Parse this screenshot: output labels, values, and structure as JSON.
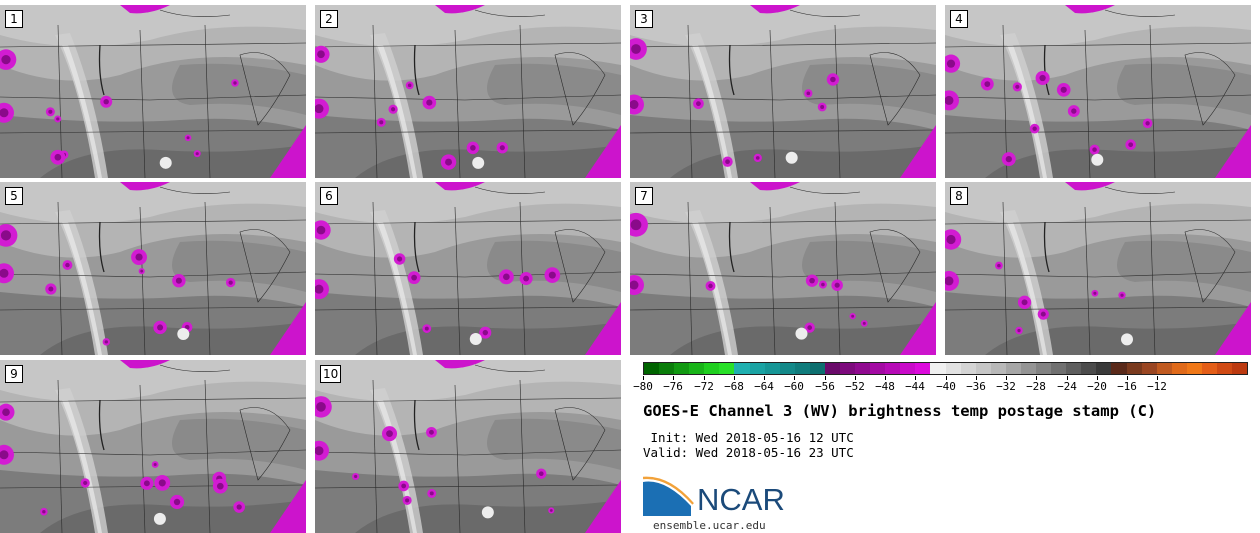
{
  "panels": [
    {
      "label": "1"
    },
    {
      "label": "2"
    },
    {
      "label": "3"
    },
    {
      "label": "4"
    },
    {
      "label": "5"
    },
    {
      "label": "6"
    },
    {
      "label": "7"
    },
    {
      "label": "8"
    },
    {
      "label": "9"
    },
    {
      "label": "10"
    }
  ],
  "colorbar": {
    "colors": [
      "#006400",
      "#0a7d0a",
      "#119911",
      "#18b418",
      "#1fcf1f",
      "#28e028",
      "#1fb0b0",
      "#1aa3a3",
      "#169696",
      "#138989",
      "#107c7c",
      "#0d6f6f",
      "#6a0a6a",
      "#7d0a7d",
      "#900a90",
      "#a30aa3",
      "#b60ab6",
      "#c90ac9",
      "#dc0adc",
      "#f0f0f0",
      "#e2e2e2",
      "#d4d4d4",
      "#c6c6c6",
      "#b8b8b8",
      "#a6a6a6",
      "#949494",
      "#828282",
      "#707070",
      "#5e5e5e",
      "#4c4c4c",
      "#3a3a3a",
      "#5a2a1a",
      "#7a3a1e",
      "#9a4622",
      "#c05a20",
      "#e06a1a",
      "#f07818",
      "#e45e18",
      "#d04a14",
      "#bc3a10"
    ],
    "tick_labels": [
      "−80",
      "−76",
      "−72",
      "−68",
      "−64",
      "−60",
      "−56",
      "−52",
      "−48",
      "−44",
      "−40",
      "−36",
      "−32",
      "−28",
      "−24",
      "−20",
      "−16",
      "−12"
    ]
  },
  "title": "GOES-E Channel 3 (WV) brightness temp postage stamp (C)",
  "init": " Init: Wed 2018-05-16 12 UTC",
  "valid": "Valid: Wed 2018-05-16 23 UTC",
  "logo_text": "NCAR",
  "url": "ensemble.ucar.edu"
}
